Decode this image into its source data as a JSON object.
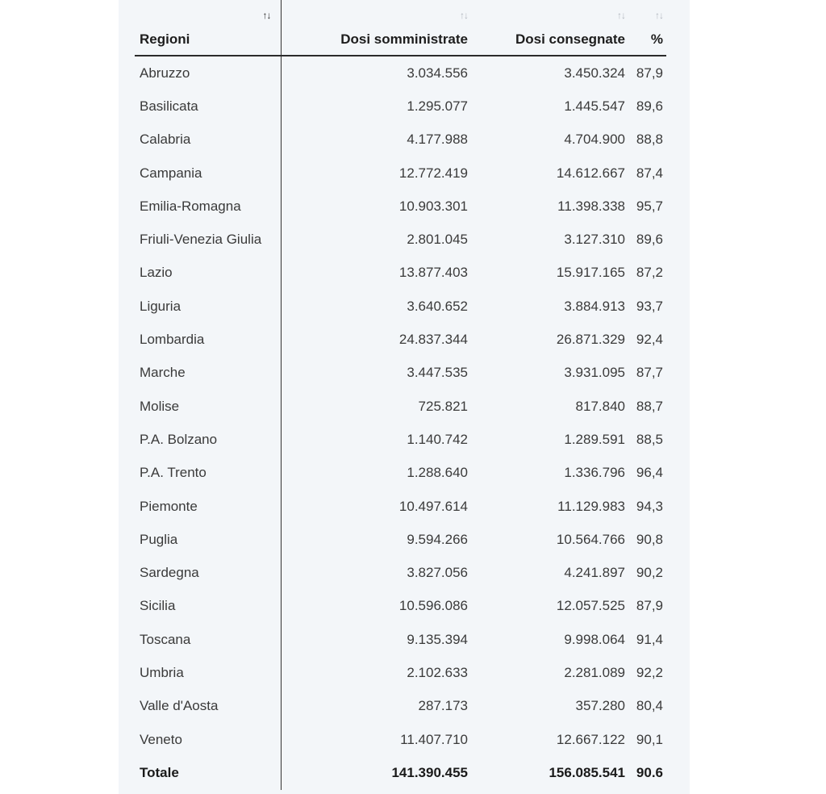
{
  "table": {
    "headers": {
      "region": "Regioni",
      "somministrate": "Dosi somministrate",
      "consegnate": "Dosi consegnate",
      "percent": "%"
    },
    "sort_icon": "↑↓",
    "rows": [
      {
        "region": "Abruzzo",
        "somministrate": "3.034.556",
        "consegnate": "3.450.324",
        "percent": "87,9"
      },
      {
        "region": "Basilicata",
        "somministrate": "1.295.077",
        "consegnate": "1.445.547",
        "percent": "89,6"
      },
      {
        "region": "Calabria",
        "somministrate": "4.177.988",
        "consegnate": "4.704.900",
        "percent": "88,8"
      },
      {
        "region": "Campania",
        "somministrate": "12.772.419",
        "consegnate": "14.612.667",
        "percent": "87,4"
      },
      {
        "region": "Emilia-Romagna",
        "somministrate": "10.903.301",
        "consegnate": "11.398.338",
        "percent": "95,7"
      },
      {
        "region": "Friuli-Venezia Giulia",
        "somministrate": "2.801.045",
        "consegnate": "3.127.310",
        "percent": "89,6"
      },
      {
        "region": "Lazio",
        "somministrate": "13.877.403",
        "consegnate": "15.917.165",
        "percent": "87,2"
      },
      {
        "region": "Liguria",
        "somministrate": "3.640.652",
        "consegnate": "3.884.913",
        "percent": "93,7"
      },
      {
        "region": "Lombardia",
        "somministrate": "24.837.344",
        "consegnate": "26.871.329",
        "percent": "92,4"
      },
      {
        "region": "Marche",
        "somministrate": "3.447.535",
        "consegnate": "3.931.095",
        "percent": "87,7"
      },
      {
        "region": "Molise",
        "somministrate": "725.821",
        "consegnate": "817.840",
        "percent": "88,7"
      },
      {
        "region": "P.A. Bolzano",
        "somministrate": "1.140.742",
        "consegnate": "1.289.591",
        "percent": "88,5"
      },
      {
        "region": "P.A. Trento",
        "somministrate": "1.288.640",
        "consegnate": "1.336.796",
        "percent": "96,4"
      },
      {
        "region": "Piemonte",
        "somministrate": "10.497.614",
        "consegnate": "11.129.983",
        "percent": "94,3"
      },
      {
        "region": "Puglia",
        "somministrate": "9.594.266",
        "consegnate": "10.564.766",
        "percent": "90,8"
      },
      {
        "region": "Sardegna",
        "somministrate": "3.827.056",
        "consegnate": "4.241.897",
        "percent": "90,2"
      },
      {
        "region": "Sicilia",
        "somministrate": "10.596.086",
        "consegnate": "12.057.525",
        "percent": "87,9"
      },
      {
        "region": "Toscana",
        "somministrate": "9.135.394",
        "consegnate": "9.998.064",
        "percent": "91,4"
      },
      {
        "region": "Umbria",
        "somministrate": "2.102.633",
        "consegnate": "2.281.089",
        "percent": "92,2"
      },
      {
        "region": "Valle d'Aosta",
        "somministrate": "287.173",
        "consegnate": "357.280",
        "percent": "80,4"
      },
      {
        "region": "Veneto",
        "somministrate": "11.407.710",
        "consegnate": "12.667.122",
        "percent": "90,1"
      }
    ],
    "total": {
      "label": "Totale",
      "somministrate": "141.390.455",
      "consegnate": "156.085.541",
      "percent": "90.6"
    }
  }
}
